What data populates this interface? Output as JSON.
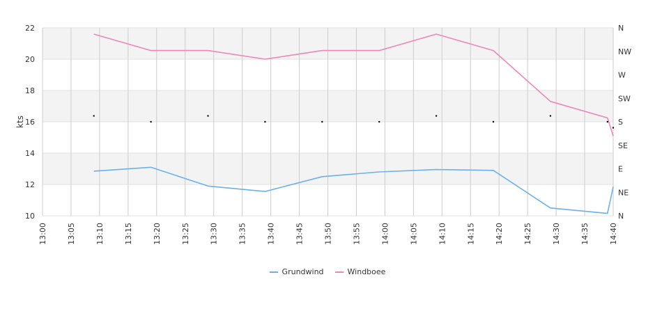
{
  "chart_data": {
    "type": "line",
    "ylabel": "kts",
    "ylim": [
      10,
      22
    ],
    "yticks": [
      "10",
      "12",
      "14",
      "16",
      "18",
      "20",
      "22"
    ],
    "right_axis_ticks": [
      "N",
      "NE",
      "E",
      "SE",
      "S",
      "SW",
      "W",
      "NW",
      "N"
    ],
    "xticks": [
      "13:00",
      "13:05",
      "13:10",
      "13:15",
      "13:20",
      "13:25",
      "13:30",
      "13:35",
      "13:40",
      "13:45",
      "13:50",
      "13:55",
      "14:00",
      "14:05",
      "14:10",
      "14:15",
      "14:20",
      "14:25",
      "14:30",
      "14:35",
      "14:40"
    ],
    "x": [
      "13:09",
      "13:19",
      "13:29",
      "13:39",
      "13:49",
      "13:59",
      "14:09",
      "14:19",
      "14:29",
      "14:39",
      "14:40"
    ],
    "series": [
      {
        "name": "Grundwind",
        "color": "#6ab0ec",
        "values": [
          12.85,
          13.1,
          11.9,
          11.55,
          12.5,
          12.8,
          12.95,
          12.9,
          10.5,
          10.15,
          11.85
        ]
      },
      {
        "name": "Windboee",
        "color": "#ef86b6",
        "values": [
          21.6,
          20.55,
          20.55,
          20.0,
          20.55,
          20.55,
          21.6,
          20.55,
          17.3,
          16.25,
          15.1
        ]
      }
    ],
    "direction_markers": {
      "x": [
        "13:09",
        "13:19",
        "13:29",
        "13:39",
        "13:49",
        "13:59",
        "14:09",
        "14:19",
        "14:29",
        "14:39",
        "14:40"
      ],
      "values": [
        "S",
        "S",
        "S",
        "S",
        "S",
        "S",
        "S",
        "S",
        "S",
        "S",
        "S"
      ]
    },
    "grid": true,
    "legend_position": "bottom"
  }
}
